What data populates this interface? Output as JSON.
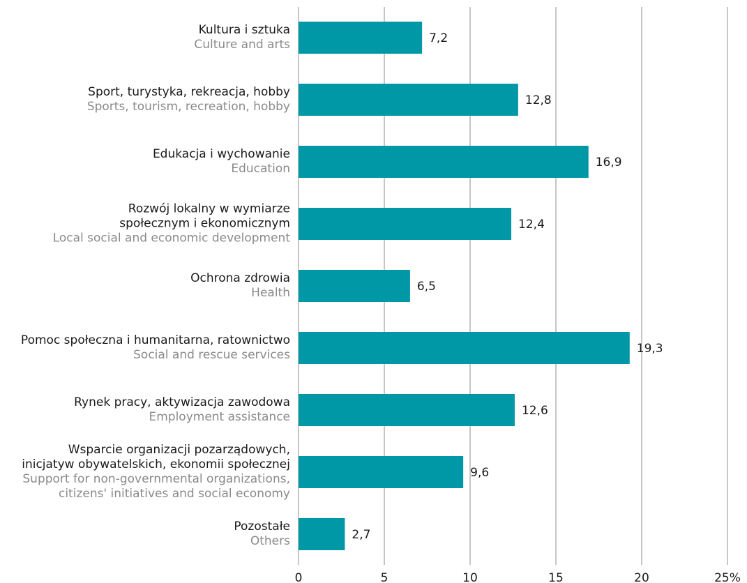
{
  "chart_data": {
    "type": "bar",
    "orientation": "horizontal",
    "categories": [
      {
        "pl": [
          "Kultura i sztuka"
        ],
        "en": [
          "Culture and arts"
        ]
      },
      {
        "pl": [
          "Sport, turystyka, rekreacja, hobby"
        ],
        "en": [
          "Sports, tourism, recreation, hobby"
        ]
      },
      {
        "pl": [
          "Edukacja i wychowanie"
        ],
        "en": [
          "Education"
        ]
      },
      {
        "pl": [
          "Rozwój lokalny w wymiarze",
          "społecznym i ekonomicznym"
        ],
        "en": [
          "Local social and economic development"
        ]
      },
      {
        "pl": [
          "Ochrona zdrowia"
        ],
        "en": [
          "Health"
        ]
      },
      {
        "pl": [
          "Pomoc społeczna i humanitarna, ratownictwo"
        ],
        "en": [
          "Social and rescue services"
        ]
      },
      {
        "pl": [
          "Rynek pracy, aktywizacja zawodowa"
        ],
        "en": [
          "Employment assistance"
        ]
      },
      {
        "pl": [
          "Wsparcie organizacji pozarządowych,",
          "inicjatyw obywatelskich, ekonomii społecznej"
        ],
        "en": [
          "Support for non-governmental organizations,",
          "citizens' initiatives and social economy"
        ]
      },
      {
        "pl": [
          "Pozostałe"
        ],
        "en": [
          "Others"
        ]
      }
    ],
    "values": [
      7.2,
      12.8,
      16.9,
      12.4,
      6.5,
      19.3,
      12.6,
      9.6,
      2.7
    ],
    "value_labels": [
      "7,2",
      "12,8",
      "16,9",
      "12,4",
      "6,5",
      "19,3",
      "12,6",
      "9,6",
      "2,7"
    ],
    "xlim": [
      0,
      25
    ],
    "xticks": [
      0,
      5,
      10,
      15,
      20,
      25
    ],
    "xtick_labels": [
      "0",
      "5",
      "10",
      "15",
      "20",
      "25%"
    ],
    "grid": true,
    "bar_color": "#0097a7",
    "grid_color": "#8c8c8c",
    "secondary_text_color": "#8a8a8a"
  }
}
